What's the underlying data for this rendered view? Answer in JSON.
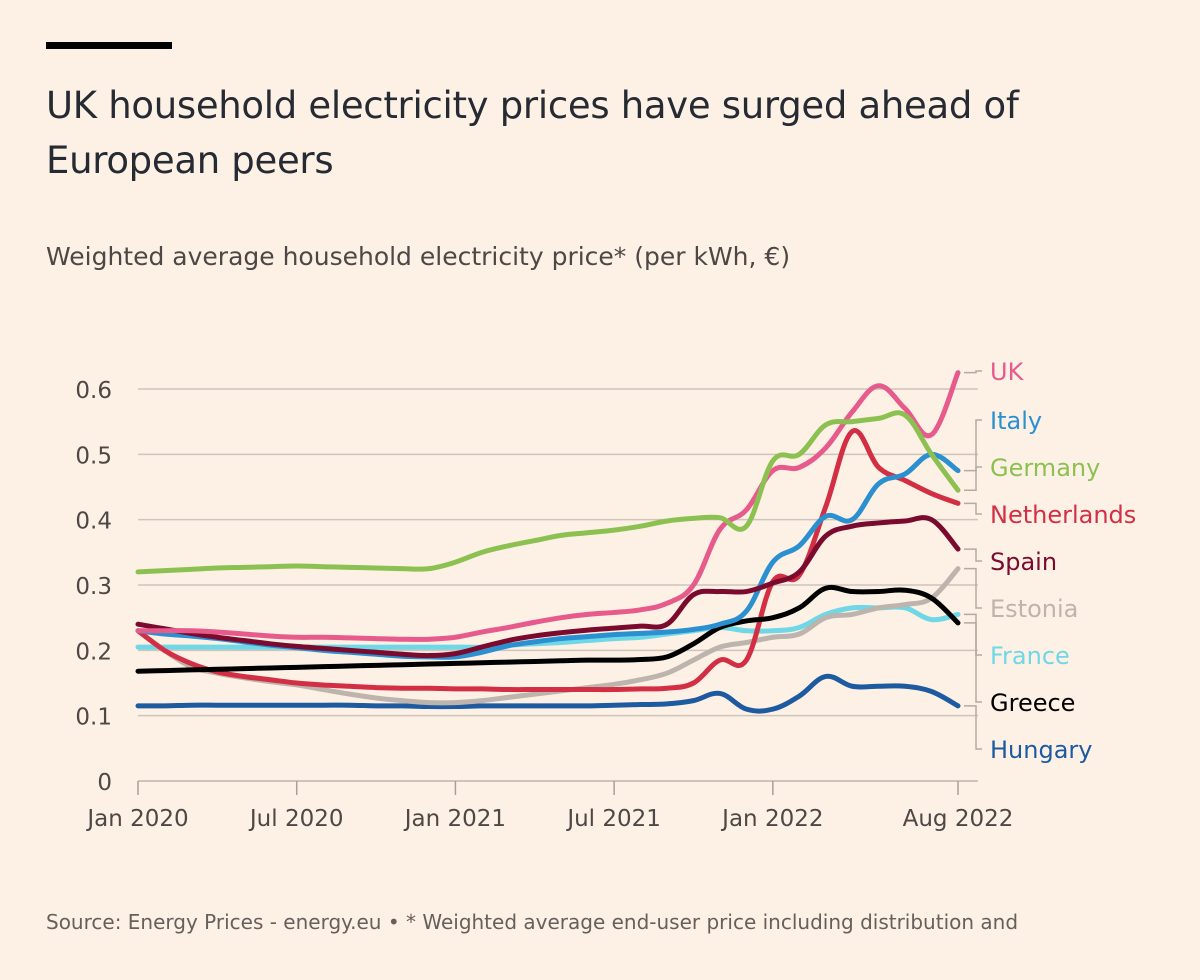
{
  "title": "UK household electricity prices have surged ahead of European peers",
  "subtitle": "Weighted average household electricity price* (per kWh, €)",
  "footer": "Source: Energy Prices - energy.eu • * Weighted average end-user price including distribution and",
  "chart_data": {
    "type": "line",
    "title": "UK household electricity prices have surged ahead of European peers",
    "ylabel": "Weighted average household electricity price* (per kWh, €)",
    "xlabel": "",
    "ylim": [
      0,
      0.6
    ],
    "yticks": [
      "0",
      "0.1",
      "0.2",
      "0.3",
      "0.4",
      "0.5",
      "0.6"
    ],
    "xticks": [
      {
        "month": 0,
        "label": "Jan 2020"
      },
      {
        "month": 6,
        "label": "Jul 2020"
      },
      {
        "month": 12,
        "label": "Jan 2021"
      },
      {
        "month": 18,
        "label": "Jul 2021"
      },
      {
        "month": 24,
        "label": "Jan 2022"
      },
      {
        "month": 31,
        "label": "Aug 2022"
      }
    ],
    "x": [
      "2020-01",
      "2020-02",
      "2020-03",
      "2020-04",
      "2020-05",
      "2020-06",
      "2020-07",
      "2020-08",
      "2020-09",
      "2020-10",
      "2020-11",
      "2020-12",
      "2021-01",
      "2021-02",
      "2021-03",
      "2021-04",
      "2021-05",
      "2021-06",
      "2021-07",
      "2021-08",
      "2021-09",
      "2021-10",
      "2021-11",
      "2021-12",
      "2022-01",
      "2022-02",
      "2022-03",
      "2022-04",
      "2022-05",
      "2022-06",
      "2022-07",
      "2022-08"
    ],
    "grid": true,
    "legend": "direct labels at right",
    "series": [
      {
        "name": "Hungary",
        "color": "#1d5aa0",
        "values": [
          0.115,
          0.115,
          0.116,
          0.116,
          0.116,
          0.116,
          0.116,
          0.116,
          0.116,
          0.115,
          0.115,
          0.114,
          0.114,
          0.115,
          0.115,
          0.115,
          0.115,
          0.115,
          0.116,
          0.117,
          0.118,
          0.123,
          0.134,
          0.11,
          0.11,
          0.13,
          0.16,
          0.145,
          0.145,
          0.145,
          0.137,
          0.115
        ]
      },
      {
        "name": "France",
        "color": "#6fd7e6",
        "values": [
          0.205,
          0.205,
          0.205,
          0.205,
          0.205,
          0.205,
          0.205,
          0.205,
          0.205,
          0.205,
          0.205,
          0.205,
          0.205,
          0.205,
          0.208,
          0.21,
          0.212,
          0.215,
          0.218,
          0.22,
          0.225,
          0.23,
          0.235,
          0.23,
          0.23,
          0.235,
          0.255,
          0.265,
          0.265,
          0.265,
          0.247,
          0.255
        ]
      },
      {
        "name": "Estonia",
        "color": "#bdb4ad",
        "values": [
          0.23,
          0.2,
          0.175,
          0.165,
          0.158,
          0.152,
          0.147,
          0.14,
          0.133,
          0.127,
          0.123,
          0.12,
          0.12,
          0.123,
          0.128,
          0.133,
          0.138,
          0.143,
          0.148,
          0.155,
          0.165,
          0.185,
          0.205,
          0.212,
          0.22,
          0.225,
          0.25,
          0.255,
          0.265,
          0.27,
          0.28,
          0.325
        ]
      },
      {
        "name": "Netherlands",
        "color": "#d32f44",
        "values": [
          0.23,
          0.2,
          0.18,
          0.167,
          0.16,
          0.155,
          0.15,
          0.147,
          0.145,
          0.143,
          0.142,
          0.142,
          0.141,
          0.141,
          0.14,
          0.14,
          0.14,
          0.14,
          0.14,
          0.141,
          0.142,
          0.15,
          0.185,
          0.185,
          0.305,
          0.315,
          0.42,
          0.535,
          0.48,
          0.46,
          0.44,
          0.425
        ]
      },
      {
        "name": "Greece",
        "color": "#000000",
        "values": [
          0.168,
          0.169,
          0.17,
          0.171,
          0.172,
          0.173,
          0.174,
          0.175,
          0.176,
          0.177,
          0.178,
          0.179,
          0.18,
          0.181,
          0.182,
          0.183,
          0.184,
          0.185,
          0.185,
          0.186,
          0.19,
          0.21,
          0.235,
          0.245,
          0.25,
          0.265,
          0.295,
          0.29,
          0.29,
          0.292,
          0.28,
          0.242
        ]
      },
      {
        "name": "Italy",
        "color": "#2b90d0",
        "values": [
          0.23,
          0.225,
          0.222,
          0.218,
          0.213,
          0.208,
          0.204,
          0.2,
          0.197,
          0.194,
          0.191,
          0.19,
          0.19,
          0.197,
          0.207,
          0.213,
          0.218,
          0.221,
          0.224,
          0.226,
          0.228,
          0.232,
          0.24,
          0.26,
          0.335,
          0.36,
          0.405,
          0.4,
          0.455,
          0.47,
          0.5,
          0.475
        ]
      },
      {
        "name": "Spain",
        "color": "#7a0a2e",
        "values": [
          0.24,
          0.233,
          0.226,
          0.22,
          0.215,
          0.21,
          0.206,
          0.203,
          0.2,
          0.197,
          0.194,
          0.192,
          0.195,
          0.205,
          0.215,
          0.222,
          0.227,
          0.231,
          0.234,
          0.237,
          0.24,
          0.285,
          0.29,
          0.29,
          0.303,
          0.32,
          0.375,
          0.39,
          0.395,
          0.398,
          0.4,
          0.355
        ]
      },
      {
        "name": "UK",
        "color": "#e75b8c",
        "values": [
          0.23,
          0.23,
          0.23,
          0.228,
          0.225,
          0.222,
          0.22,
          0.22,
          0.219,
          0.218,
          0.217,
          0.217,
          0.22,
          0.228,
          0.235,
          0.243,
          0.25,
          0.255,
          0.258,
          0.262,
          0.272,
          0.3,
          0.385,
          0.415,
          0.475,
          0.48,
          0.51,
          0.565,
          0.605,
          0.57,
          0.53,
          0.625
        ]
      },
      {
        "name": "Germany",
        "color": "#8cc152",
        "values": [
          0.32,
          0.322,
          0.324,
          0.326,
          0.327,
          0.328,
          0.329,
          0.328,
          0.327,
          0.326,
          0.325,
          0.325,
          0.335,
          0.35,
          0.36,
          0.368,
          0.376,
          0.38,
          0.384,
          0.39,
          0.398,
          0.402,
          0.403,
          0.39,
          0.49,
          0.5,
          0.545,
          0.55,
          0.555,
          0.56,
          0.5,
          0.445
        ]
      }
    ],
    "label_order": [
      "UK",
      "Italy",
      "Germany",
      "Netherlands",
      "Spain",
      "Estonia",
      "France",
      "Greece",
      "Hungary"
    ]
  }
}
